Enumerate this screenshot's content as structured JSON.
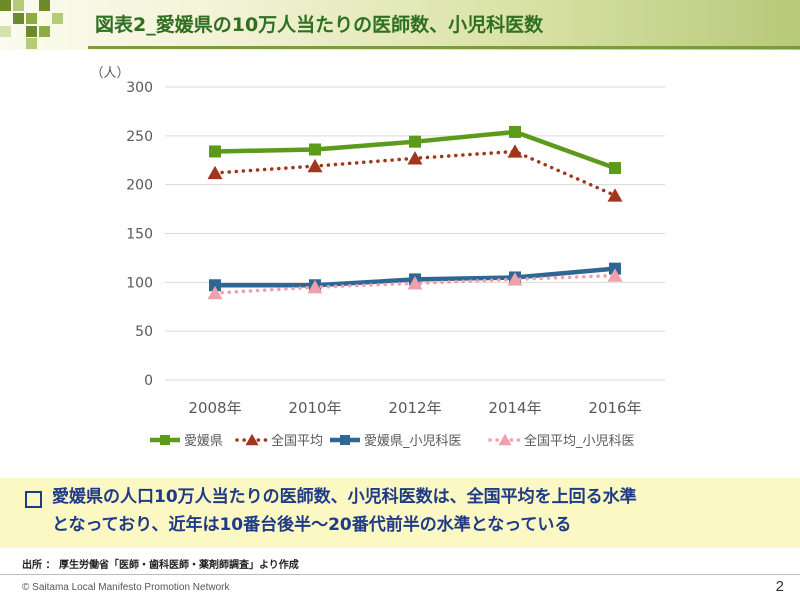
{
  "slide": {
    "title": "図表2_愛媛県の10万人当たりの医師数、小児科医数",
    "summary_line1": "愛媛県の人口10万人当たりの医師数、小児科医数は、全国平均を上回る水準",
    "summary_line2": "となっており、近年は10番台後半～20番代前半の水準となっている",
    "source_note": "出所 ： 厚生労働省「医師・歯科医師・薬剤師調査」より作成",
    "copyright": "© Saitama Local Manifesto Promotion Network",
    "page_number": "2",
    "colors": {
      "title_text": "#2f6f22",
      "summary_text": "#1f3a86",
      "summary_background": "#fbf8c4"
    }
  },
  "chart_data": {
    "type": "line",
    "title": "",
    "xlabel": "",
    "ylabel": "（人）",
    "categories": [
      "2008年",
      "2010年",
      "2012年",
      "2014年",
      "2016年"
    ],
    "ylim": [
      0,
      300
    ],
    "yticks": [
      0,
      50,
      100,
      150,
      200,
      250,
      300
    ],
    "grid": true,
    "legend_position": "bottom",
    "series": [
      {
        "name": "愛媛県",
        "values": [
          234,
          236,
          244,
          254,
          217
        ],
        "color": "#5b9a1a",
        "line": "solid",
        "marker": "square"
      },
      {
        "name": "全国平均",
        "values": [
          212,
          219,
          227,
          234,
          189
        ],
        "color": "#a0361b",
        "line": "dotted",
        "marker": "triangle"
      },
      {
        "name": "愛媛県_小児科医",
        "values": [
          97,
          97,
          103,
          105,
          114
        ],
        "color": "#2e6793",
        "line": "solid",
        "marker": "square"
      },
      {
        "name": "全国平均_小児科医",
        "values": [
          89,
          95,
          99,
          103,
          107
        ],
        "color": "#f0a0ac",
        "line": "dotted",
        "marker": "triangle"
      }
    ]
  }
}
